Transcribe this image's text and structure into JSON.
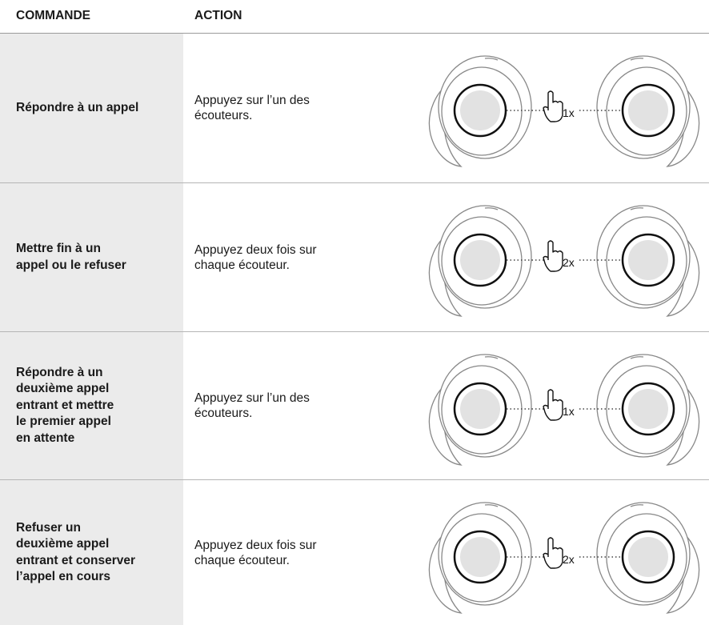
{
  "header": {
    "command": "COMMANDE",
    "action": "ACTION"
  },
  "table": {
    "rows": [
      {
        "command": [
          "Répondre à un appel"
        ],
        "action": [
          "Appuyez sur l’un des",
          "écouteurs."
        ],
        "taps": "1x"
      },
      {
        "command": [
          "Mettre fin à un",
          "appel ou le refuser"
        ],
        "action": [
          "Appuyez deux fois sur",
          "chaque écouteur."
        ],
        "taps": "2x"
      },
      {
        "command": [
          "Répondre à un",
          "deuxième appel",
          "entrant et mettre",
          "le premier appel",
          "en attente"
        ],
        "action": [
          "Appuyez sur l’un des",
          "écouteurs."
        ],
        "taps": "1x"
      },
      {
        "command": [
          "Refuser un",
          "deuxième appel",
          "entrant et conserver",
          "l’appel en cours"
        ],
        "action": [
          "Appuyez deux fois sur",
          "chaque écouteur."
        ],
        "taps": "2x"
      }
    ]
  }
}
